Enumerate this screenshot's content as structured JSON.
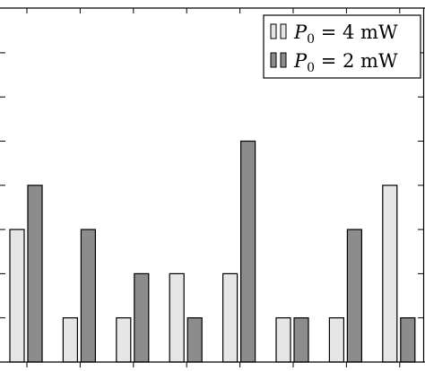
{
  "chart_data": {
    "type": "bar",
    "categories": [
      "",
      "",
      "",
      "",
      "",
      "",
      "",
      ""
    ],
    "series": [
      {
        "name": "P0 = 4 mW",
        "values": [
          3,
          1,
          1,
          2,
          2,
          1,
          1,
          4
        ],
        "color": "#e6e6e6"
      },
      {
        "name": "P0 = 2 mW",
        "values": [
          4,
          3,
          2,
          1,
          5,
          1,
          3,
          1
        ],
        "color": "#8c8c8c"
      }
    ],
    "ylim": [
      0,
      8
    ],
    "grid": false,
    "legend_position": "top-right",
    "title": "",
    "xlabel": "",
    "ylabel": ""
  },
  "legend": {
    "items": [
      {
        "symbol": "P",
        "subscript": "0",
        "equals": " = 4 ",
        "unit": "mW"
      },
      {
        "symbol": "P",
        "subscript": "0",
        "equals": " = 2 ",
        "unit": "mW"
      }
    ]
  },
  "colors": {
    "axis": "#000000",
    "bar_stroke": "#000000"
  }
}
